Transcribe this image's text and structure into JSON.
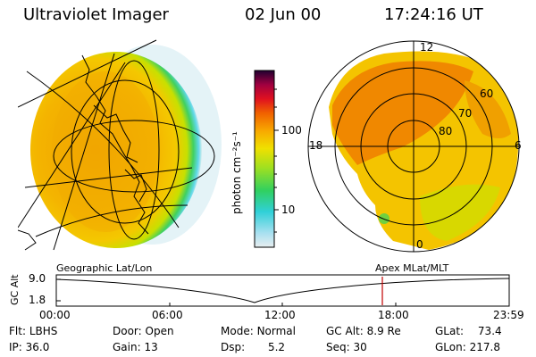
{
  "header": {
    "instrument": "Ultraviolet Imager",
    "date": "02 Jun 00",
    "time": "17:24:16 UT"
  },
  "colorbar": {
    "label": "photon cm⁻²s⁻¹",
    "ticks": [
      "100",
      "10"
    ],
    "scale": "log"
  },
  "polar_plot": {
    "mlt_labels": [
      "12",
      "18",
      "6",
      "0"
    ],
    "mlat_labels": [
      "60",
      "70",
      "80"
    ]
  },
  "timeline": {
    "axis_title": "GC Alt",
    "left_caption": "Geographic Lat/Lon",
    "right_caption": "Apex MLat/MLT",
    "y_ticks": [
      "9.0",
      "1.8"
    ],
    "x_ticks": [
      "00:00",
      "06:00",
      "12:00",
      "18:00",
      "23:59"
    ],
    "marker_time": "17:24",
    "marker_color": "#c00000"
  },
  "info": {
    "row1": [
      {
        "label": "Flt:",
        "value": "LBHS"
      },
      {
        "label": "Door:",
        "value": "Open"
      },
      {
        "label": "Mode:",
        "value": "Normal"
      },
      {
        "label": "GC Alt:",
        "value": "8.9 Re"
      },
      {
        "label": "GLat:",
        "value": "73.4"
      }
    ],
    "row2": [
      {
        "label": "IP:",
        "value": "36.0"
      },
      {
        "label": "Gain:",
        "value": "13"
      },
      {
        "label": "Dsp:",
        "value": "5.2"
      },
      {
        "label": "Seq:",
        "value": "30"
      },
      {
        "label": "GLon:",
        "value": "217.8"
      }
    ]
  }
}
